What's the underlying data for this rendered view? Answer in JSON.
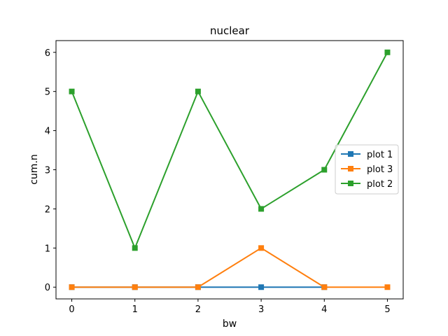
{
  "chart_data": {
    "type": "line",
    "title": "nuclear",
    "xlabel": "bw",
    "ylabel": "cum.n",
    "x": [
      0,
      1,
      2,
      3,
      4,
      5
    ],
    "xlim": [
      -0.25,
      5.25
    ],
    "ylim": [
      -0.3,
      6.3
    ],
    "xticks": [
      0,
      1,
      2,
      3,
      4,
      5
    ],
    "yticks": [
      0,
      1,
      2,
      3,
      4,
      5,
      6
    ],
    "grid": false,
    "legend_position": "center-right",
    "marker": "square",
    "series": [
      {
        "name": "plot 1",
        "color": "#1f77b4",
        "values": [
          0,
          0,
          0,
          0,
          0,
          null
        ]
      },
      {
        "name": "plot 3",
        "color": "#ff7f0e",
        "values": [
          0,
          0,
          0,
          1,
          0,
          0
        ]
      },
      {
        "name": "plot 2",
        "color": "#2ca02c",
        "values": [
          5,
          1,
          5,
          2,
          3,
          6
        ]
      }
    ]
  }
}
